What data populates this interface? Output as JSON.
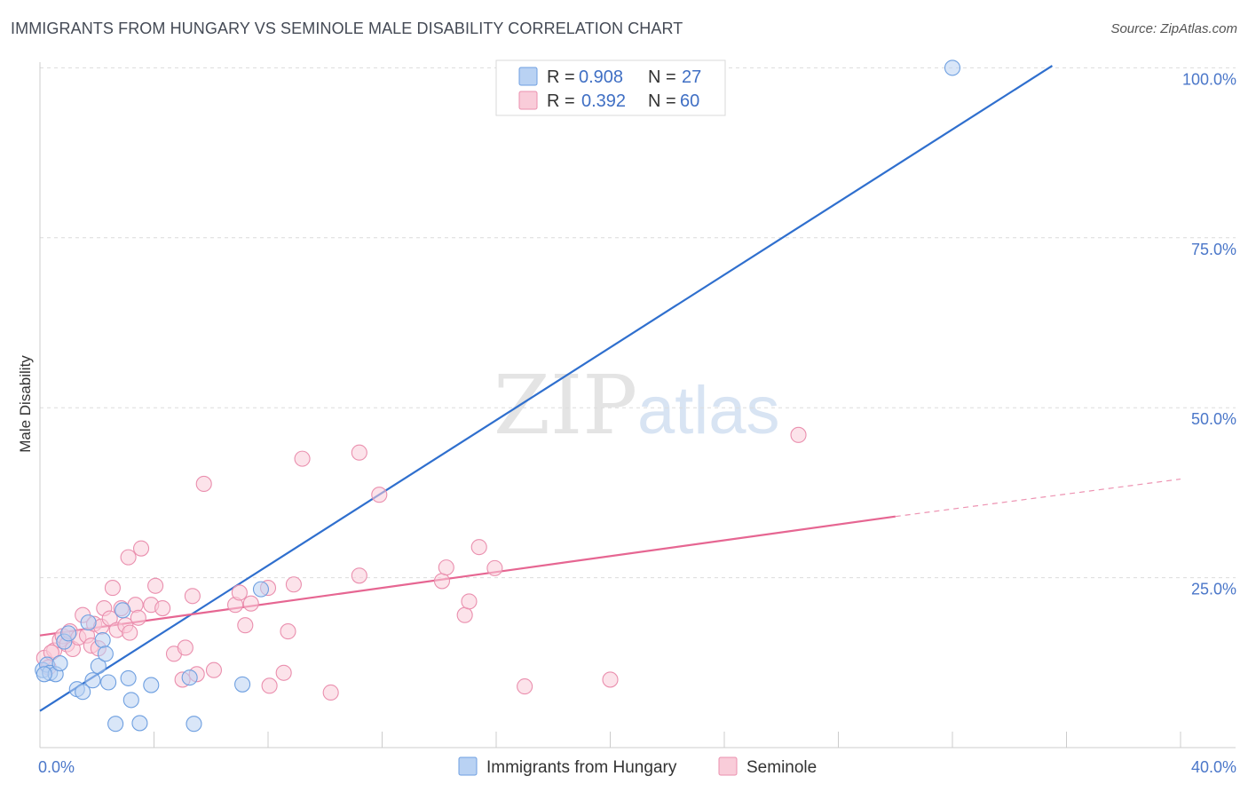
{
  "title": "IMMIGRANTS FROM HUNGARY VS SEMINOLE MALE DISABILITY CORRELATION CHART",
  "source": "Source: ZipAtlas.com",
  "watermark": {
    "part1": "ZIP",
    "part2": "atlas"
  },
  "chart_data": {
    "type": "scatter",
    "title": "IMMIGRANTS FROM HUNGARY VS SEMINOLE MALE DISABILITY CORRELATION CHART",
    "xlabel": "",
    "ylabel": "Male Disability",
    "xlim": [
      0,
      40
    ],
    "ylim": [
      0,
      102
    ],
    "x_tick_labels": [
      {
        "value": 0,
        "label": "0.0%"
      },
      {
        "value": 40,
        "label": "40.0%"
      }
    ],
    "y_tick_labels": [
      {
        "value": 25,
        "label": "25.0%"
      },
      {
        "value": 50,
        "label": "50.0%"
      },
      {
        "value": 75,
        "label": "75.0%"
      },
      {
        "value": 100,
        "label": "100.0%"
      }
    ],
    "legend": {
      "position": "top-center",
      "r_label": "R =",
      "n_label": "N =",
      "entries": [
        {
          "series": "Immigrants from Hungary",
          "r": "0.908",
          "n": "27"
        },
        {
          "series": "Seminole",
          "r": "0.392",
          "n": "60"
        }
      ]
    },
    "series": [
      {
        "name": "Immigrants from Hungary",
        "color": "#6e9fe0",
        "fill": "#b9d2f3",
        "trend_color": "#2f6fce",
        "trend": {
          "x": [
            0,
            35.5
          ],
          "y": [
            5.4,
            100.3
          ]
        },
        "points": [
          {
            "x": 0.1,
            "y": 11.4
          },
          {
            "x": 0.25,
            "y": 12.2
          },
          {
            "x": 0.35,
            "y": 11.0
          },
          {
            "x": 0.55,
            "y": 10.8
          },
          {
            "x": 0.7,
            "y": 12.4
          },
          {
            "x": 0.85,
            "y": 15.6
          },
          {
            "x": 1.0,
            "y": 16.8
          },
          {
            "x": 1.3,
            "y": 8.6
          },
          {
            "x": 1.5,
            "y": 8.2
          },
          {
            "x": 1.7,
            "y": 18.4
          },
          {
            "x": 1.85,
            "y": 9.9
          },
          {
            "x": 2.05,
            "y": 12.0
          },
          {
            "x": 2.2,
            "y": 15.8
          },
          {
            "x": 2.3,
            "y": 13.8
          },
          {
            "x": 2.4,
            "y": 9.6
          },
          {
            "x": 2.65,
            "y": 3.5
          },
          {
            "x": 2.9,
            "y": 20.2
          },
          {
            "x": 3.1,
            "y": 10.2
          },
          {
            "x": 3.2,
            "y": 7.0
          },
          {
            "x": 3.5,
            "y": 3.6
          },
          {
            "x": 3.9,
            "y": 9.2
          },
          {
            "x": 5.25,
            "y": 10.3
          },
          {
            "x": 5.4,
            "y": 3.5
          },
          {
            "x": 7.1,
            "y": 9.3
          },
          {
            "x": 7.75,
            "y": 23.3
          },
          {
            "x": 32.0,
            "y": 100.0
          },
          {
            "x": 0.15,
            "y": 10.8
          }
        ]
      },
      {
        "name": "Seminole",
        "color": "#ea8fae",
        "fill": "#f9ccd9",
        "trend_color": "#e66692",
        "trend": {
          "x": [
            0,
            30.0
          ],
          "y": [
            16.5,
            34.0
          ]
        },
        "trend_dashed": {
          "x": [
            30.0,
            40.0
          ],
          "y": [
            34.0,
            39.5
          ]
        },
        "points": [
          {
            "x": 0.15,
            "y": 13.2
          },
          {
            "x": 0.3,
            "y": 11.8
          },
          {
            "x": 0.5,
            "y": 14.3
          },
          {
            "x": 0.7,
            "y": 15.8
          },
          {
            "x": 0.8,
            "y": 16.4
          },
          {
            "x": 0.95,
            "y": 15.2
          },
          {
            "x": 1.05,
            "y": 17.1
          },
          {
            "x": 1.15,
            "y": 14.5
          },
          {
            "x": 1.35,
            "y": 16.2
          },
          {
            "x": 1.5,
            "y": 19.5
          },
          {
            "x": 1.65,
            "y": 16.5
          },
          {
            "x": 1.8,
            "y": 15.0
          },
          {
            "x": 1.9,
            "y": 18.2
          },
          {
            "x": 2.05,
            "y": 14.6
          },
          {
            "x": 2.15,
            "y": 17.8
          },
          {
            "x": 2.25,
            "y": 20.5
          },
          {
            "x": 2.45,
            "y": 19.0
          },
          {
            "x": 2.55,
            "y": 23.5
          },
          {
            "x": 2.7,
            "y": 17.3
          },
          {
            "x": 2.85,
            "y": 20.5
          },
          {
            "x": 3.0,
            "y": 18.0
          },
          {
            "x": 3.1,
            "y": 28.0
          },
          {
            "x": 3.15,
            "y": 16.9
          },
          {
            "x": 3.35,
            "y": 21.0
          },
          {
            "x": 3.45,
            "y": 19.1
          },
          {
            "x": 3.55,
            "y": 29.3
          },
          {
            "x": 3.9,
            "y": 21.0
          },
          {
            "x": 4.05,
            "y": 23.8
          },
          {
            "x": 4.3,
            "y": 20.5
          },
          {
            "x": 4.7,
            "y": 13.8
          },
          {
            "x": 5.0,
            "y": 10.0
          },
          {
            "x": 5.1,
            "y": 14.7
          },
          {
            "x": 5.35,
            "y": 22.3
          },
          {
            "x": 5.5,
            "y": 10.8
          },
          {
            "x": 5.75,
            "y": 38.8
          },
          {
            "x": 6.1,
            "y": 11.4
          },
          {
            "x": 6.85,
            "y": 21.0
          },
          {
            "x": 7.0,
            "y": 22.8
          },
          {
            "x": 7.2,
            "y": 18.0
          },
          {
            "x": 7.4,
            "y": 21.2
          },
          {
            "x": 8.0,
            "y": 23.5
          },
          {
            "x": 8.05,
            "y": 9.1
          },
          {
            "x": 8.55,
            "y": 11.0
          },
          {
            "x": 8.7,
            "y": 17.1
          },
          {
            "x": 8.9,
            "y": 24.0
          },
          {
            "x": 9.2,
            "y": 42.5
          },
          {
            "x": 10.2,
            "y": 8.1
          },
          {
            "x": 11.2,
            "y": 43.4
          },
          {
            "x": 11.2,
            "y": 25.3
          },
          {
            "x": 11.9,
            "y": 37.2
          },
          {
            "x": 14.1,
            "y": 24.5
          },
          {
            "x": 14.25,
            "y": 26.5
          },
          {
            "x": 14.9,
            "y": 19.5
          },
          {
            "x": 15.05,
            "y": 21.5
          },
          {
            "x": 15.4,
            "y": 29.5
          },
          {
            "x": 15.95,
            "y": 26.4
          },
          {
            "x": 17.0,
            "y": 9.0
          },
          {
            "x": 20.0,
            "y": 10.0
          },
          {
            "x": 26.6,
            "y": 46.0
          },
          {
            "x": 0.4,
            "y": 14.0
          }
        ]
      }
    ]
  }
}
